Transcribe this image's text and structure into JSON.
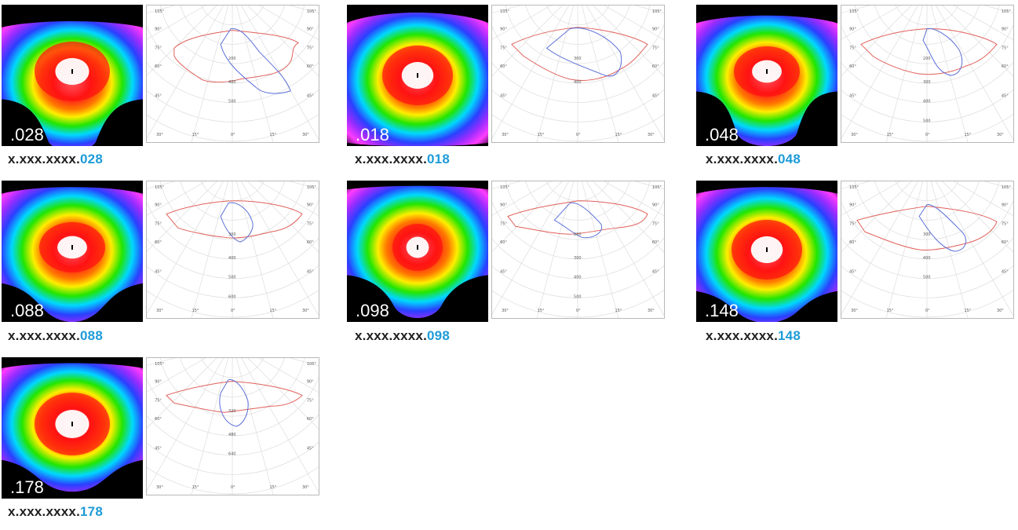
{
  "products": [
    {
      "id": "p028",
      "code": ".028",
      "prefix": "x.xxx.xxxx.",
      "suffix": "028",
      "polar": {
        "angles": [
          "105°",
          "90°",
          "75°",
          "60°",
          "45°",
          "30°",
          "15°",
          "0°",
          "15°",
          "30°"
        ],
        "radii": [
          "200",
          "400",
          "500"
        ]
      }
    },
    {
      "id": "p018",
      "code": ".018",
      "prefix": "x.xxx.xxxx.",
      "suffix": "018",
      "polar": {
        "angles": [
          "105°",
          "90°",
          "75°",
          "60°",
          "45°",
          "30°",
          "15°",
          "0°",
          "15°",
          "30°"
        ],
        "radii": [
          "300",
          "400"
        ]
      }
    },
    {
      "id": "p048",
      "code": ".048",
      "prefix": "x.xxx.xxxx.",
      "suffix": "048",
      "polar": {
        "angles": [
          "105°",
          "90°",
          "75°",
          "60°",
          "45°",
          "30°",
          "15°",
          "0°",
          "15°",
          "30°"
        ],
        "radii": [
          "200",
          "300",
          "400",
          "500"
        ]
      }
    },
    {
      "id": "p088",
      "code": ".088",
      "prefix": "x.xxx.xxxx.",
      "suffix": "088",
      "polar": {
        "angles": [
          "105°",
          "90°",
          "75°",
          "60°",
          "45°",
          "30°",
          "15°",
          "0°",
          "15°",
          "30°"
        ],
        "radii": [
          "300",
          "400",
          "500",
          "600"
        ]
      }
    },
    {
      "id": "p098",
      "code": ".098",
      "prefix": "x.xxx.xxxx.",
      "suffix": "098",
      "polar": {
        "angles": [
          "105°",
          "90°",
          "75°",
          "60°",
          "45°",
          "30°",
          "15°",
          "0°",
          "15°",
          "30°"
        ],
        "radii": [
          "200",
          "300",
          "400",
          "500"
        ]
      }
    },
    {
      "id": "p148",
      "code": ".148",
      "prefix": "x.xxx.xxxx.",
      "suffix": "148",
      "polar": {
        "angles": [
          "105°",
          "90°",
          "75°",
          "60°",
          "45°",
          "30°",
          "15°",
          "0°",
          "15°",
          "30°"
        ],
        "radii": [
          "300",
          "400",
          "500"
        ]
      }
    },
    {
      "id": "p178",
      "code": ".178",
      "prefix": "x.xxx.xxxx.",
      "suffix": "178",
      "polar": {
        "angles": [
          "105°",
          "90°",
          "75°",
          "60°",
          "45°",
          "30°",
          "15°",
          "0°",
          "15°",
          "30°"
        ],
        "radii": [
          "320",
          "480",
          "640"
        ]
      }
    }
  ],
  "colors": {
    "caption_suffix": "#1e9bd7",
    "curve_c0": "#5b6fd8",
    "curve_c90": "#e0605a"
  }
}
